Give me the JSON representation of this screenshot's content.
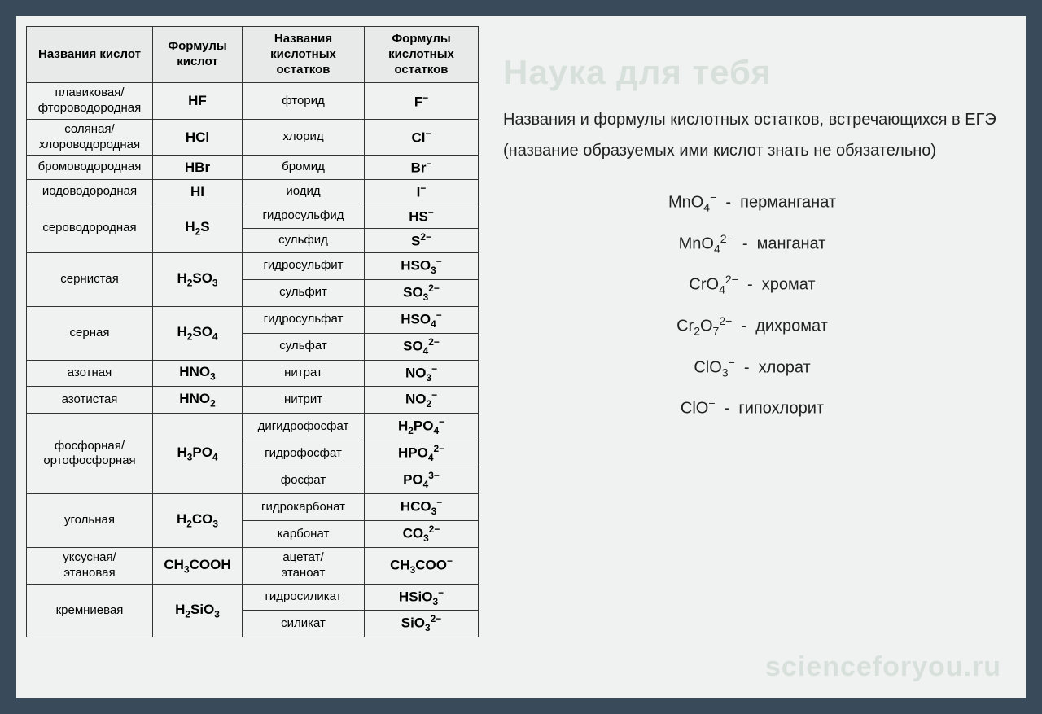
{
  "watermarks": {
    "top": "Наука для тебя",
    "bottom": "scienceforyou.ru"
  },
  "table": {
    "headers": [
      "Названия кислот",
      "Формулы кислот",
      "Названия кислотных остатков",
      "Формулы кислотных остатков"
    ],
    "rows": [
      {
        "acid_name": "плавиковая/ фтороводородная",
        "acid_formula": "HF",
        "residues": [
          {
            "name": "фторид",
            "formula": "F⁻"
          }
        ]
      },
      {
        "acid_name": "соляная/ хлороводородная",
        "acid_formula": "HCl",
        "residues": [
          {
            "name": "хлорид",
            "formula": "Cl⁻"
          }
        ]
      },
      {
        "acid_name": "бромоводородная",
        "acid_formula": "HBr",
        "residues": [
          {
            "name": "бромид",
            "formula": "Br⁻"
          }
        ]
      },
      {
        "acid_name": "иодоводородная",
        "acid_formula": "HI",
        "residues": [
          {
            "name": "иодид",
            "formula": "I⁻"
          }
        ]
      },
      {
        "acid_name": "сероводородная",
        "acid_formula": "H₂S",
        "residues": [
          {
            "name": "гидросульфид",
            "formula": "HS⁻"
          },
          {
            "name": "сульфид",
            "formula": "S²⁻"
          }
        ]
      },
      {
        "acid_name": "сернистая",
        "acid_formula": "H₂SO₃",
        "residues": [
          {
            "name": "гидросульфит",
            "formula": "HSO₃⁻"
          },
          {
            "name": "сульфит",
            "formula": "SO₃²⁻"
          }
        ]
      },
      {
        "acid_name": "серная",
        "acid_formula": "H₂SO₄",
        "residues": [
          {
            "name": "гидросульфат",
            "formula": "HSO₄⁻"
          },
          {
            "name": "сульфат",
            "formula": "SO₄²⁻"
          }
        ]
      },
      {
        "acid_name": "азотная",
        "acid_formula": "HNO₃",
        "residues": [
          {
            "name": "нитрат",
            "formula": "NO₃⁻"
          }
        ]
      },
      {
        "acid_name": "азотистая",
        "acid_formula": "HNO₂",
        "residues": [
          {
            "name": "нитрит",
            "formula": "NO₂⁻"
          }
        ]
      },
      {
        "acid_name": "фосфорная/ ортофосфорная",
        "acid_formula": "H₃PO₄",
        "residues": [
          {
            "name": "дигидрофосфат",
            "formula": "H₂PO₄⁻"
          },
          {
            "name": "гидрофосфат",
            "formula": "HPO₄²⁻"
          },
          {
            "name": "фосфат",
            "formula": "PO₄³⁻"
          }
        ]
      },
      {
        "acid_name": "угольная",
        "acid_formula": "H₂CO₃",
        "residues": [
          {
            "name": "гидрокарбонат",
            "formula": "HCO₃⁻"
          },
          {
            "name": "карбонат",
            "formula": "CO₃²⁻"
          }
        ]
      },
      {
        "acid_name": "уксусная/ этановая",
        "acid_formula": "CH₃COOH",
        "residues": [
          {
            "name": "ацетат/ этаноат",
            "formula": "CH₃COO⁻"
          }
        ]
      },
      {
        "acid_name": "кремниевая",
        "acid_formula": "H₂SiO₃",
        "residues": [
          {
            "name": "гидросиликат",
            "formula": "HSiO₃⁻"
          },
          {
            "name": "силикат",
            "formula": "SiO₃²⁻"
          }
        ]
      }
    ]
  },
  "right_panel": {
    "description": "Названия и формулы кислотных остатков, встречающихся в ЕГЭ (название образуемых ими кислот знать не обязательно)",
    "ions": [
      {
        "formula": "MnO₄⁻",
        "name": "перманганат"
      },
      {
        "formula": "MnO₄²⁻",
        "name": "манганат"
      },
      {
        "formula": "CrO₄²⁻",
        "name": "хромат"
      },
      {
        "formula": "Cr₂O₇²⁻",
        "name": "дихромат"
      },
      {
        "formula": "ClO₃⁻",
        "name": "хлорат"
      },
      {
        "formula": "ClO⁻",
        "name": "гипохлорит"
      }
    ]
  },
  "style": {
    "page_bg": "#f0f2f2",
    "outer_bg": "#394b5a",
    "border_color": "#333333",
    "watermark_color": "#d8e0dc",
    "text_color": "#222222",
    "header_bg": "#e8eaea",
    "font_family": "Verdana",
    "table_font_size": 15,
    "formula_font_size": 17,
    "desc_font_size": 20,
    "watermark_top_font_size": 42,
    "watermark_bottom_font_size": 34
  }
}
